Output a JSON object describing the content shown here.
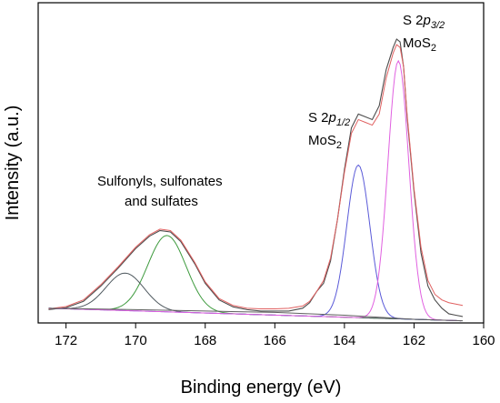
{
  "chart_data": {
    "type": "line",
    "title": "",
    "xlabel": "Binding energy (eV)",
    "ylabel": "Intensity (a.u.)",
    "xlim": [
      172.8,
      160
    ],
    "x_reversed": true,
    "y_tick_labels_shown": false,
    "grid": false,
    "legend": "none",
    "x_ticks": [
      172,
      170,
      168,
      166,
      164,
      162,
      160
    ],
    "x_tick_labels": [
      "172",
      "170",
      "168",
      "166",
      "164",
      "162",
      "160"
    ],
    "annotations": [
      {
        "text_main": "S 2",
        "text_italic": "p",
        "text_sub": "3/2",
        "text_line2": "MoS",
        "text_line2_sub": "2",
        "anchor": "S 2p3/2 peak"
      },
      {
        "text_main": "S 2",
        "text_italic": "p",
        "text_sub": "1/2",
        "text_line2": "MoS",
        "text_line2_sub": "2",
        "anchor": "S 2p1/2 peak"
      },
      {
        "text_line1": "Sulfonyls, sulfonates",
        "text_line2": "and sulfates",
        "anchor": "oxidized sulfur region"
      }
    ],
    "series": [
      {
        "color": "#4d4d4d",
        "kind": "measured",
        "points": [
          [
            172.5,
            0.025
          ],
          [
            172.0,
            0.032
          ],
          [
            171.5,
            0.055
          ],
          [
            171.0,
            0.11
          ],
          [
            170.5,
            0.175
          ],
          [
            170.0,
            0.245
          ],
          [
            169.6,
            0.29
          ],
          [
            169.3,
            0.31
          ],
          [
            169.0,
            0.305
          ],
          [
            168.7,
            0.27
          ],
          [
            168.3,
            0.19
          ],
          [
            168.0,
            0.12
          ],
          [
            167.6,
            0.06
          ],
          [
            167.2,
            0.035
          ],
          [
            166.8,
            0.025
          ],
          [
            166.4,
            0.02
          ],
          [
            166.0,
            0.02
          ],
          [
            165.6,
            0.02
          ],
          [
            165.2,
            0.03
          ],
          [
            165.0,
            0.05
          ],
          [
            164.8,
            0.09
          ],
          [
            164.6,
            0.12
          ],
          [
            164.4,
            0.2
          ],
          [
            164.2,
            0.35
          ],
          [
            164.0,
            0.53
          ],
          [
            163.8,
            0.68
          ],
          [
            163.6,
            0.73
          ],
          [
            163.4,
            0.72
          ],
          [
            163.2,
            0.71
          ],
          [
            163.0,
            0.76
          ],
          [
            162.8,
            0.89
          ],
          [
            162.6,
            0.97
          ],
          [
            162.5,
            1.0
          ],
          [
            162.4,
            0.99
          ],
          [
            162.3,
            0.9
          ],
          [
            162.2,
            0.72
          ],
          [
            162.0,
            0.45
          ],
          [
            161.8,
            0.23
          ],
          [
            161.6,
            0.11
          ],
          [
            161.4,
            0.06
          ],
          [
            161.2,
            0.03
          ],
          [
            161.0,
            0.01
          ],
          [
            160.8,
            0.005
          ],
          [
            160.6,
            0.0
          ]
        ]
      },
      {
        "color": "#e06060",
        "kind": "fit-envelope",
        "points": [
          [
            172.5,
            0.028
          ],
          [
            172.0,
            0.036
          ],
          [
            171.5,
            0.06
          ],
          [
            171.0,
            0.115
          ],
          [
            170.5,
            0.18
          ],
          [
            170.0,
            0.25
          ],
          [
            169.6,
            0.295
          ],
          [
            169.3,
            0.315
          ],
          [
            169.0,
            0.31
          ],
          [
            168.7,
            0.275
          ],
          [
            168.3,
            0.195
          ],
          [
            168.0,
            0.125
          ],
          [
            167.6,
            0.065
          ],
          [
            167.2,
            0.04
          ],
          [
            166.8,
            0.03
          ],
          [
            166.4,
            0.028
          ],
          [
            166.0,
            0.028
          ],
          [
            165.6,
            0.03
          ],
          [
            165.2,
            0.038
          ],
          [
            165.0,
            0.055
          ],
          [
            164.8,
            0.09
          ],
          [
            164.6,
            0.13
          ],
          [
            164.4,
            0.21
          ],
          [
            164.2,
            0.35
          ],
          [
            164.0,
            0.52
          ],
          [
            163.8,
            0.66
          ],
          [
            163.6,
            0.71
          ],
          [
            163.4,
            0.7
          ],
          [
            163.2,
            0.69
          ],
          [
            163.0,
            0.73
          ],
          [
            162.8,
            0.86
          ],
          [
            162.6,
            0.95
          ],
          [
            162.5,
            0.98
          ],
          [
            162.4,
            0.97
          ],
          [
            162.3,
            0.9
          ],
          [
            162.2,
            0.73
          ],
          [
            162.0,
            0.46
          ],
          [
            161.8,
            0.25
          ],
          [
            161.6,
            0.13
          ],
          [
            161.4,
            0.08
          ],
          [
            161.2,
            0.06
          ],
          [
            161.0,
            0.05
          ],
          [
            160.8,
            0.045
          ],
          [
            160.6,
            0.04
          ]
        ]
      },
      {
        "color": "#3d9a3d",
        "kind": "component",
        "center": 169.1,
        "height": 0.275,
        "sigma": 0.55
      },
      {
        "color": "#505a60",
        "kind": "component",
        "center": 170.3,
        "height": 0.135,
        "sigma": 0.55
      },
      {
        "color": "#5a5ad8",
        "kind": "component",
        "center": 163.6,
        "height": 0.55,
        "sigma": 0.33
      },
      {
        "color": "#e060e0",
        "kind": "component",
        "center": 162.45,
        "height": 0.93,
        "sigma": 0.3
      },
      {
        "color": "#606060",
        "kind": "baseline",
        "points": [
          [
            172.5,
            0.03
          ],
          [
            170.0,
            0.025
          ],
          [
            168.0,
            0.02
          ],
          [
            166.0,
            0.015
          ],
          [
            164.0,
            0.005
          ],
          [
            162.0,
            -0.01
          ],
          [
            160.6,
            -0.015
          ]
        ]
      }
    ]
  }
}
